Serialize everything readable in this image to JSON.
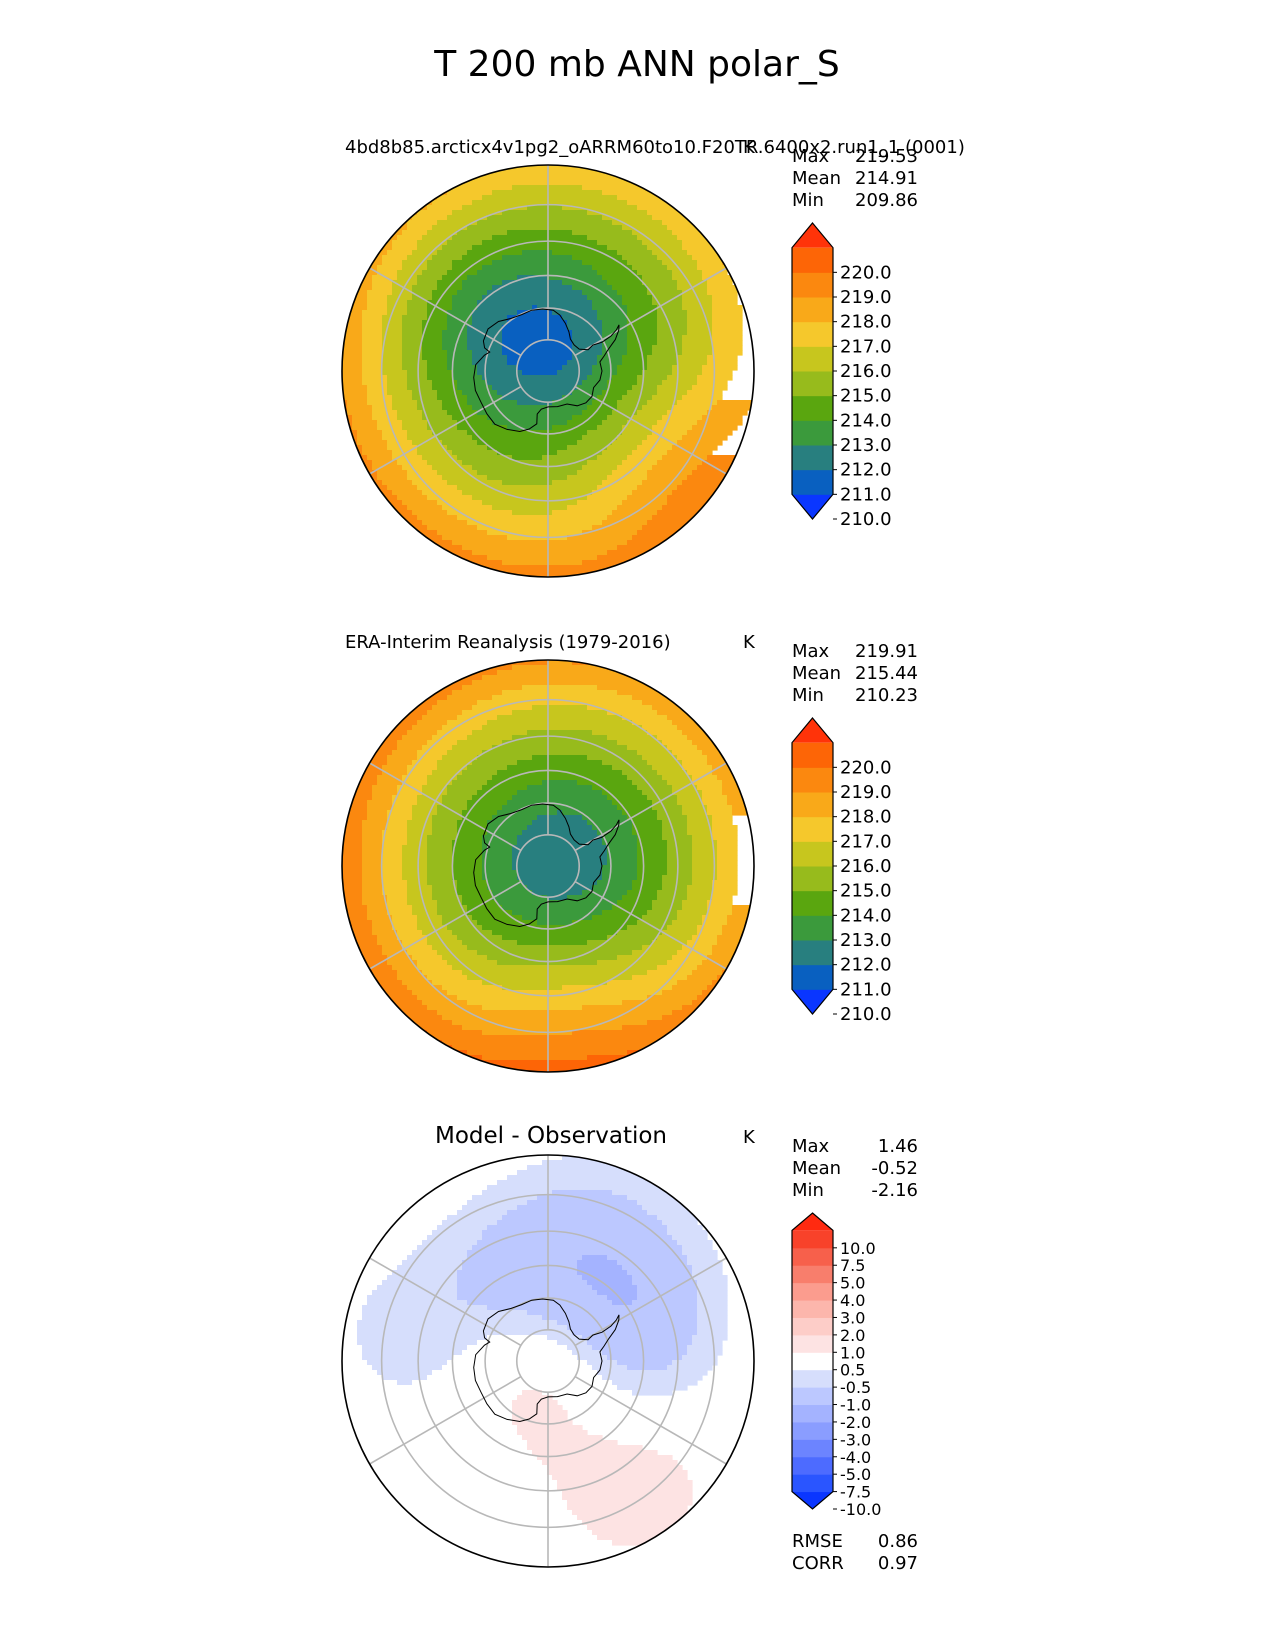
{
  "title": "T 200 mb ANN polar_S",
  "colors": {
    "abs_levels": [
      "#0a36ff",
      "#0960c0",
      "#287f7f",
      "#3b9a3c",
      "#5aa60f",
      "#97bb1c",
      "#c7c61e",
      "#f5c82c",
      "#f9a919",
      "#fb880f",
      "#fd6506",
      "#ff3309"
    ],
    "diff_levels": [
      "#0a36ff",
      "#2a55ff",
      "#4d6bff",
      "#6c84ff",
      "#8a9dff",
      "#a4b3ff",
      "#bcc8ff",
      "#d6defc",
      "#ffffff",
      "#fde3e3",
      "#fdcdc8",
      "#fcb6ac",
      "#fb9c8e",
      "#f87e6c",
      "#f7604b",
      "#f8422a",
      "#ff2a10"
    ],
    "grid": "#b8b8b8",
    "coast": "#000000"
  },
  "chart_data": [
    {
      "type": "heatmap",
      "projection": "south-polar-stereographic",
      "title": "4bd8b85.arcticx4v1pg2_oARRM60to10.F20TR.6400x2.run1_1 (0001)",
      "units": "K",
      "stats": {
        "max_label": "Max",
        "max": "219.53",
        "mean_label": "Mean",
        "mean": "214.91",
        "min_label": "Min",
        "min": "209.86"
      },
      "colorbar": {
        "ticks": [
          "220.0",
          "219.0",
          "218.0",
          "217.0",
          "216.0",
          "215.0",
          "214.0",
          "213.0",
          "212.0",
          "211.0",
          "210.0"
        ],
        "range": [
          209.0,
          221.0
        ],
        "extend": "both"
      },
      "field": {
        "pole_value": 211.2,
        "edge_value": 217.6,
        "center_lon_deg": 150,
        "center_offset_deg_lat": 6,
        "anomalies": [
          {
            "lon_deg": 225,
            "lat": -66,
            "value_delta": -1.5
          },
          {
            "lon_deg": 55,
            "lat": -48,
            "value_delta": 1.8
          }
        ]
      }
    },
    {
      "type": "heatmap",
      "projection": "south-polar-stereographic",
      "title": "ERA-Interim Reanalysis (1979-2016)",
      "units": "K",
      "stats": {
        "max_label": "Max",
        "max": "219.91",
        "mean_label": "Mean",
        "mean": "215.44",
        "min_label": "Min",
        "min": "210.23"
      },
      "colorbar": {
        "ticks": [
          "220.0",
          "219.0",
          "218.0",
          "217.0",
          "216.0",
          "215.0",
          "214.0",
          "213.0",
          "212.0",
          "211.0",
          "210.0"
        ],
        "range": [
          209.0,
          221.0
        ],
        "extend": "both"
      },
      "field": {
        "pole_value": 210.9,
        "edge_value": 218.3,
        "center_lon_deg": 110,
        "center_offset_deg_lat": 4,
        "anomalies": [
          {
            "lon_deg": 10,
            "lat": -45,
            "value_delta": 1.4
          }
        ]
      }
    },
    {
      "type": "heatmap",
      "projection": "south-polar-stereographic",
      "title": "Model - Observation",
      "units": "K",
      "stats": {
        "max_label": "Max",
        "max": "1.46",
        "mean_label": "Mean",
        "mean": "-0.52",
        "min_label": "Min",
        "min": "-2.16"
      },
      "colorbar": {
        "ticks": [
          "10.0",
          "7.5",
          "5.0",
          "4.0",
          "3.0",
          "2.0",
          "1.0",
          "0.5",
          "-0.5",
          "-1.0",
          "-2.0",
          "-3.0",
          "-4.0",
          "-5.0",
          "-7.5",
          "-10.0"
        ],
        "levels": [
          -10,
          -7.5,
          -5,
          -4,
          -3,
          -2,
          -1,
          -0.5,
          0.5,
          1,
          2,
          3,
          4,
          5,
          7.5,
          10
        ],
        "extend": "both"
      },
      "metrics": {
        "rmse_label": "RMSE",
        "rmse": "0.86",
        "corr_label": "CORR",
        "corr": "0.97"
      },
      "field": {
        "blobs": [
          {
            "lon_deg": 120,
            "lat": -58,
            "value": -1.4
          },
          {
            "lon_deg": 200,
            "lat": -62,
            "value": -1.2
          },
          {
            "lon_deg": 160,
            "lat": -48,
            "value": -0.9
          },
          {
            "lon_deg": 20,
            "lat": -86,
            "value": 1.3
          },
          {
            "lon_deg": 35,
            "lat": -45,
            "value": 0.9
          },
          {
            "lon_deg": 75,
            "lat": -70,
            "value": -0.8
          },
          {
            "lon_deg": 260,
            "lat": -47,
            "value": -0.7
          }
        ]
      }
    }
  ]
}
